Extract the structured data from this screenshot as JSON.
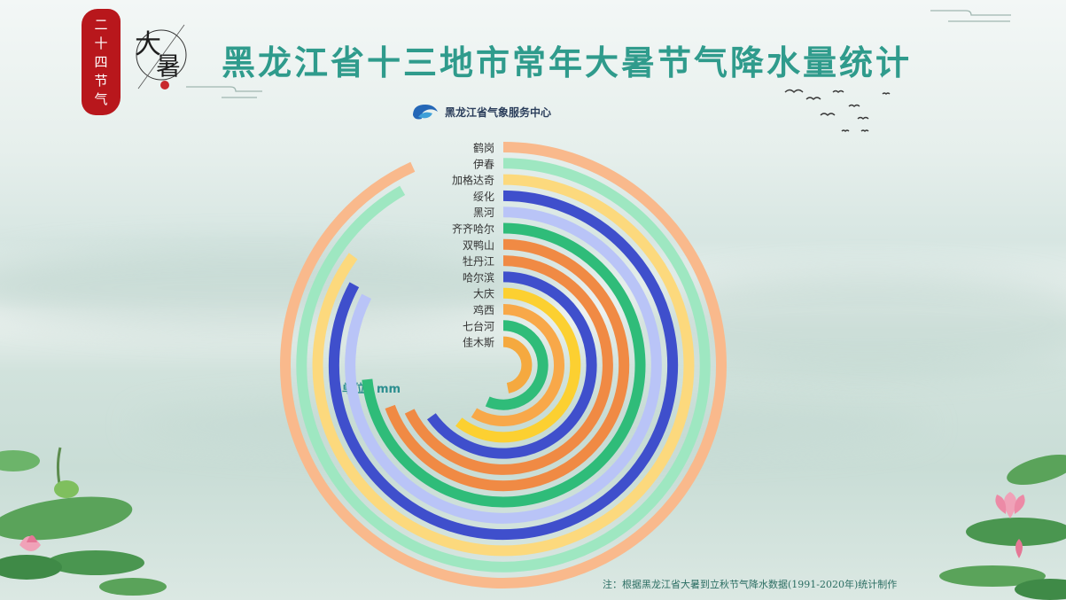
{
  "header": {
    "seal": [
      "二",
      "十",
      "四",
      "节",
      "气"
    ],
    "dashu_char": "大暑",
    "title": "黑龙江省十三地市常年大暑节气降水量统计"
  },
  "brand": {
    "name": "黑龙江省气象服务中心"
  },
  "unit_label": "单位：mm",
  "footnote": "注：根据黑龙江省大暑到立秋节气降水数据(1991-2020年)统计制作",
  "chart_data": {
    "type": "radial-bar",
    "title": "黑龙江省十三地市常年大暑节气降水量统计",
    "unit": "mm",
    "categories": [
      "鹤岗",
      "伊春",
      "加格达奇",
      "绥化",
      "黑河",
      "齐齐哈尔",
      "双鸭山",
      "牡丹江",
      "哈尔滨",
      "大庆",
      "鸡西",
      "七台河",
      "佳木斯"
    ],
    "values": [
      61.5,
      60.5,
      56.1,
      54.7,
      54.4,
      48.4,
      45.8,
      44.7,
      43.0,
      40.0,
      38.8,
      37.3,
      31.0
    ],
    "colors": [
      "#f9b98c",
      "#9ee7c1",
      "#fcd97d",
      "#3f4fcc",
      "#b9c4f7",
      "#2fbc79",
      "#f08a44",
      "#f08a44",
      "#3f4fcc",
      "#fcd031",
      "#f8a849",
      "#2fbc79",
      "#f5a93f"
    ],
    "max_value": 66,
    "start_angle": "top",
    "direction": "clockwise"
  }
}
